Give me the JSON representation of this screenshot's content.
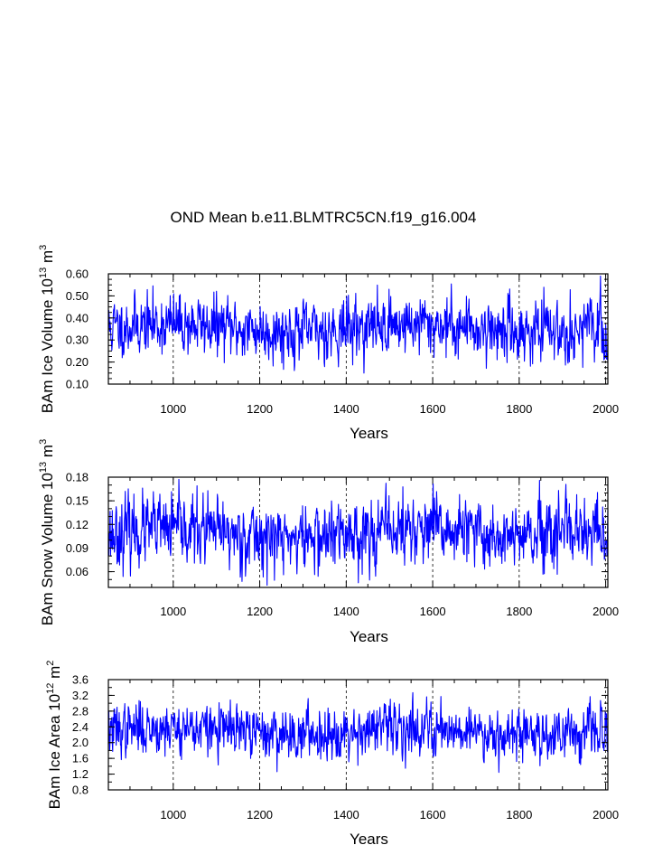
{
  "title": "OND Mean b.e11.BLMTRC5CN.f19_g16.004",
  "chart_data": [
    {
      "type": "line",
      "ylabel_prefix": "BAm Ice Volume 10",
      "ylabel_exp1": "13",
      "ylabel_mid": " m",
      "ylabel_exp2": "3",
      "xlabel": "Years",
      "xlim": [
        850,
        2005
      ],
      "ylim": [
        0.1,
        0.6
      ],
      "xticks": [
        1000,
        1200,
        1400,
        1600,
        1800,
        2000
      ],
      "yticks": [
        0.1,
        0.2,
        0.3,
        0.4,
        0.5,
        0.6
      ],
      "ytick_labels": [
        "0.10",
        "0.20",
        "0.30",
        "0.40",
        "0.50",
        "0.60"
      ],
      "yminor": 0.025,
      "gridlines_x": [
        1000,
        1200,
        1400,
        1600,
        1800,
        2000
      ],
      "series": [
        {
          "name": "BAm Ice Volume",
          "color": "#0000ff",
          "x_start": 850,
          "x_end": 2005,
          "mean": 0.355,
          "std": 0.068,
          "seed": 11
        }
      ]
    },
    {
      "type": "line",
      "ylabel_prefix": "BAm Snow Volume 10",
      "ylabel_exp1": "13",
      "ylabel_mid": " m",
      "ylabel_exp2": "3",
      "xlabel": "Years",
      "xlim": [
        850,
        2005
      ],
      "ylim": [
        0.04,
        0.18
      ],
      "xticks": [
        1000,
        1200,
        1400,
        1600,
        1800,
        2000
      ],
      "yticks": [
        0.06,
        0.09,
        0.12,
        0.15,
        0.18
      ],
      "ytick_labels": [
        "0.06",
        "0.09",
        "0.12",
        "0.15",
        "0.18"
      ],
      "yminor": 0.01,
      "gridlines_x": [
        1000,
        1200,
        1400,
        1600,
        1800,
        2000
      ],
      "series": [
        {
          "name": "BAm Snow Volume",
          "color": "#0000ff",
          "x_start": 850,
          "x_end": 2005,
          "mean": 0.108,
          "std": 0.022,
          "seed": 23
        }
      ]
    },
    {
      "type": "line",
      "ylabel_prefix": "BAm Ice Area 10",
      "ylabel_exp1": "12",
      "ylabel_mid": " m",
      "ylabel_exp2": "2",
      "xlabel": "Years",
      "xlim": [
        850,
        2005
      ],
      "ylim": [
        0.8,
        3.6
      ],
      "xticks": [
        1000,
        1200,
        1400,
        1600,
        1800,
        2000
      ],
      "yticks": [
        0.8,
        1.2,
        1.6,
        2.0,
        2.4,
        2.8,
        3.2,
        3.6
      ],
      "ytick_labels": [
        "0.8",
        "1.2",
        "1.6",
        "2.0",
        "2.4",
        "2.8",
        "3.2",
        "3.6"
      ],
      "yminor": 0.2,
      "gridlines_x": [
        1000,
        1200,
        1400,
        1600,
        1800,
        2000
      ],
      "series": [
        {
          "name": "BAm Ice Area",
          "color": "#0000ff",
          "x_start": 850,
          "x_end": 2005,
          "mean": 2.3,
          "std": 0.33,
          "seed": 37
        }
      ]
    }
  ]
}
